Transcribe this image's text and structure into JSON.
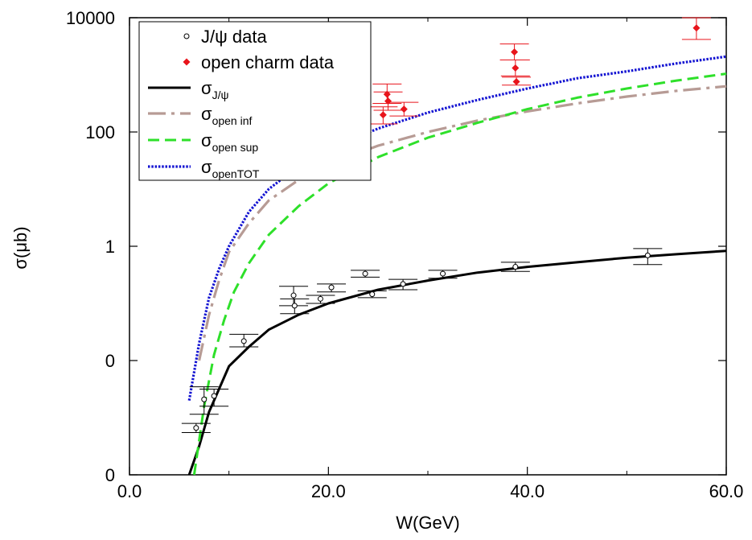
{
  "chart_data": {
    "type": "line",
    "title": "",
    "xlabel": "W(GeV)",
    "ylabel": "σ(μb)",
    "xlim": [
      0,
      60
    ],
    "ylim_display_levels": [
      0,
      4
    ],
    "y_tick_labels": [
      "0",
      "0",
      "1",
      "100",
      "10000"
    ],
    "x_tick_values": [
      0,
      20,
      40,
      60
    ],
    "x_tick_labels": [
      "0.0",
      "20.0",
      "40.0",
      "60.0"
    ],
    "grid": false,
    "legend_placement": "top-left",
    "legend": [
      {
        "id": "jpsi_data",
        "label": "J/ψ data",
        "sub": "",
        "style": "open-circle",
        "color": "#000000"
      },
      {
        "id": "open_data",
        "label": "open charm data",
        "sub": "",
        "style": "diamond",
        "color": "#e8141b"
      },
      {
        "id": "sigma_jpsi",
        "label": "σ",
        "sub": "J/ψ",
        "style": "solid",
        "color": "#000000"
      },
      {
        "id": "sigma_open_inf",
        "label": "σ",
        "sub": "open inf",
        "style": "dashdot",
        "color": "#b79b95"
      },
      {
        "id": "sigma_open_sup",
        "label": "σ",
        "sub": "open sup",
        "style": "dashed",
        "color": "#2ee02a"
      },
      {
        "id": "sigma_open_tot",
        "label": "σ",
        "sub": "openTOT",
        "style": "dotted",
        "color": "#1414d2"
      }
    ],
    "series": [
      {
        "id": "sigma_jpsi",
        "kind": "curve",
        "color": "#000000",
        "x": [
          6,
          7,
          8,
          9,
          10,
          12,
          14,
          17,
          20,
          25,
          30,
          35,
          40,
          45,
          50,
          55,
          60
        ],
        "y": [
          0.0,
          0.25,
          0.55,
          0.75,
          0.95,
          1.12,
          1.27,
          1.4,
          1.5,
          1.62,
          1.7,
          1.77,
          1.82,
          1.86,
          1.9,
          1.93,
          1.96
        ]
      },
      {
        "id": "sigma_open_inf",
        "kind": "curve",
        "color": "#b79b95",
        "x": [
          7,
          8,
          9,
          10,
          12,
          14,
          17,
          20,
          25,
          30,
          35,
          40,
          45,
          50,
          55,
          60
        ],
        "y": [
          1.0,
          1.4,
          1.7,
          1.95,
          2.2,
          2.4,
          2.58,
          2.72,
          2.88,
          3.0,
          3.1,
          3.18,
          3.25,
          3.31,
          3.36,
          3.4
        ]
      },
      {
        "id": "sigma_open_sup",
        "kind": "curve",
        "color": "#2ee02a",
        "x": [
          6.5,
          7.5,
          8.5,
          9.5,
          10.5,
          12,
          14,
          17,
          20,
          25,
          30,
          35,
          40,
          45,
          50,
          55,
          60
        ],
        "y": [
          0.0,
          0.6,
          1.05,
          1.35,
          1.6,
          1.85,
          2.1,
          2.35,
          2.55,
          2.78,
          2.95,
          3.08,
          3.2,
          3.3,
          3.38,
          3.45,
          3.51
        ]
      },
      {
        "id": "sigma_open_tot",
        "kind": "curve",
        "color": "#1414d2",
        "x": [
          6,
          7,
          8,
          9,
          10,
          12,
          14,
          17,
          20,
          25,
          30,
          35,
          40,
          45,
          50,
          55,
          60
        ],
        "y": [
          0.65,
          1.15,
          1.55,
          1.8,
          2.0,
          2.3,
          2.5,
          2.7,
          2.85,
          3.03,
          3.17,
          3.28,
          3.38,
          3.47,
          3.53,
          3.6,
          3.66
        ]
      },
      {
        "id": "jpsi_data",
        "kind": "points",
        "color": "#000000",
        "points": [
          {
            "x": 6.7,
            "y": 0.41,
            "lo": 0.37,
            "hi": 0.45
          },
          {
            "x": 7.5,
            "y": 0.66,
            "lo": 0.53,
            "hi": 0.77
          },
          {
            "x": 8.5,
            "y": 0.69,
            "lo": 0.6,
            "hi": 0.75
          },
          {
            "x": 11.5,
            "y": 1.17,
            "lo": 1.12,
            "hi": 1.23
          },
          {
            "x": 16.5,
            "y": 1.57,
            "lo": 1.48,
            "hi": 1.65
          },
          {
            "x": 16.6,
            "y": 1.48,
            "lo": 1.41,
            "hi": 1.54
          },
          {
            "x": 19.2,
            "y": 1.54,
            "lo": 1.5,
            "hi": 1.57
          },
          {
            "x": 20.3,
            "y": 1.64,
            "lo": 1.6,
            "hi": 1.67
          },
          {
            "x": 23.7,
            "y": 1.76,
            "lo": 1.73,
            "hi": 1.79
          },
          {
            "x": 24.4,
            "y": 1.58,
            "lo": 1.55,
            "hi": 1.61
          },
          {
            "x": 27.5,
            "y": 1.67,
            "lo": 1.62,
            "hi": 1.71
          },
          {
            "x": 31.5,
            "y": 1.76,
            "lo": 1.72,
            "hi": 1.79
          },
          {
            "x": 38.8,
            "y": 1.82,
            "lo": 1.78,
            "hi": 1.86
          },
          {
            "x": 52.1,
            "y": 1.92,
            "lo": 1.84,
            "hi": 1.98
          }
        ]
      },
      {
        "id": "open_data",
        "kind": "points",
        "color": "#e8141b",
        "points": [
          {
            "x": 19.3,
            "y": 2.76,
            "lo": 2.6,
            "hi": 2.92
          },
          {
            "x": 19.5,
            "y": 2.7,
            "lo": 2.6,
            "hi": 2.8
          },
          {
            "x": 25.5,
            "y": 3.15,
            "lo": 3.07,
            "hi": 3.22
          },
          {
            "x": 25.9,
            "y": 3.33,
            "lo": 3.25,
            "hi": 3.42
          },
          {
            "x": 26.0,
            "y": 3.27,
            "lo": 3.19,
            "hi": 3.35
          },
          {
            "x": 27.6,
            "y": 3.2,
            "lo": 3.14,
            "hi": 3.26
          },
          {
            "x": 38.7,
            "y": 3.7,
            "lo": 3.63,
            "hi": 3.77
          },
          {
            "x": 38.8,
            "y": 3.56,
            "lo": 3.49,
            "hi": 3.63
          },
          {
            "x": 38.9,
            "y": 3.44,
            "lo": 3.41,
            "hi": 3.48
          },
          {
            "x": 57.0,
            "y": 3.91,
            "lo": 3.81,
            "hi": 4.0
          }
        ]
      }
    ]
  }
}
